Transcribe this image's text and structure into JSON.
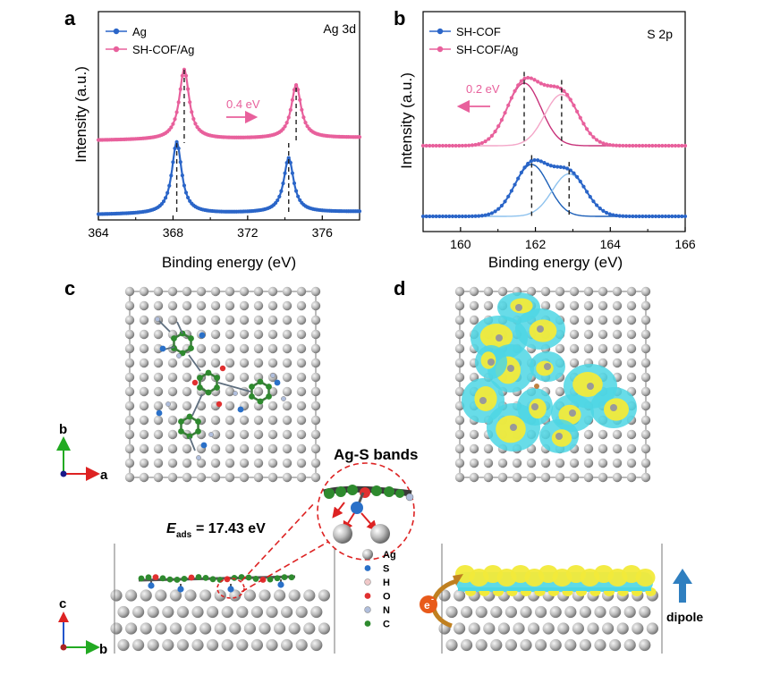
{
  "panels": {
    "a": {
      "letter": "a",
      "tag": "Ag 3d",
      "ylabel": "Intensity (a.u.)",
      "xlabel": "Binding energy (eV)",
      "annotation": "0.4 eV",
      "legend": [
        "Ag",
        "SH-COF/Ag"
      ]
    },
    "b": {
      "letter": "b",
      "tag": "S 2p",
      "ylabel": "Intensity (a.u.)",
      "xlabel": "Binding energy (eV)",
      "annotation": "0.2 eV",
      "legend": [
        "SH-COF",
        "SH-COF/Ag"
      ]
    },
    "c": {
      "letter": "c",
      "axis_top": {
        "v": "b",
        "h": "a"
      },
      "axis_bottom": {
        "v": "c",
        "h": "b"
      },
      "zoom_label": "Ag-S bands",
      "eads_E": "E",
      "eads_sub": "ads",
      "eads_rest": "= 17.43 eV",
      "legend": [
        {
          "label": "Ag",
          "color": "#9a9a9a"
        },
        {
          "label": "S",
          "color": "#2a70c8"
        },
        {
          "label": "H",
          "color": "#f0c8c8"
        },
        {
          "label": "O",
          "color": "#e03030"
        },
        {
          "label": "N",
          "color": "#b0bedc"
        },
        {
          "label": "C",
          "color": "#2e8a2e"
        }
      ]
    },
    "d": {
      "letter": "d",
      "electron": "e",
      "electron_sup": "-",
      "dipole": "dipole"
    }
  },
  "colors": {
    "ag_line": "#2a65c8",
    "cof_line": "#e8609c",
    "fit_dark_pink": "#c8327a",
    "fit_light_pink": "#f4a6c8",
    "fit_dark_blue": "#1c5fb8",
    "fit_light_blue": "#8ec2ee",
    "cdd_yellow": "#f2ea3a",
    "cdd_cyan": "#4dd6e4",
    "arrow_blue": "#2f7fc0",
    "arrow_orange": "#c08020"
  },
  "chart_data": [
    {
      "type": "line",
      "panel": "a",
      "title": "Ag 3d",
      "xlabel": "Binding energy (eV)",
      "ylabel": "Intensity (a.u.)",
      "xlim": [
        364,
        378
      ],
      "xticks": [
        364,
        368,
        372,
        376
      ],
      "yticks_shown": false,
      "series": [
        {
          "name": "Ag",
          "peaks": [
            368.2,
            374.2
          ],
          "offset": 0
        },
        {
          "name": "SH-COF/Ag",
          "peaks": [
            368.6,
            374.6
          ],
          "offset": 1
        }
      ],
      "annotations": [
        "0.4 eV"
      ]
    },
    {
      "type": "line",
      "panel": "b",
      "title": "S 2p",
      "xlabel": "Binding energy (eV)",
      "ylabel": "Intensity (a.u.)",
      "xlim": [
        159,
        166
      ],
      "xticks": [
        160,
        162,
        164,
        166
      ],
      "yticks_shown": false,
      "series": [
        {
          "name": "SH-COF",
          "fit_peaks": [
            161.9,
            162.9
          ],
          "offset": 0
        },
        {
          "name": "SH-COF/Ag",
          "fit_peaks": [
            161.7,
            162.7
          ],
          "offset": 1
        }
      ],
      "annotations": [
        "0.2 eV"
      ]
    }
  ]
}
